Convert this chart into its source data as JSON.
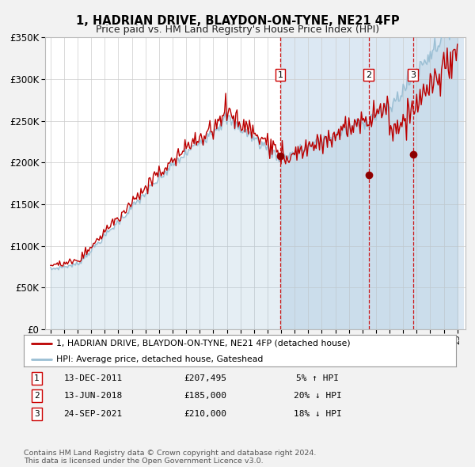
{
  "title": "1, HADRIAN DRIVE, BLAYDON-ON-TYNE, NE21 4FP",
  "subtitle": "Price paid vs. HM Land Registry's House Price Index (HPI)",
  "ylim": [
    0,
    350000
  ],
  "yticks": [
    0,
    50000,
    100000,
    150000,
    200000,
    250000,
    300000,
    350000
  ],
  "x_start_year": 1995,
  "x_end_year": 2025,
  "hpi_color": "#9bbfd4",
  "price_color": "#bb0000",
  "background_color": "#f2f2f2",
  "plot_bg_color": "#ffffff",
  "shaded_bg_color": "#dce8f3",
  "legend_label_price": "1, HADRIAN DRIVE, BLAYDON-ON-TYNE, NE21 4FP (detached house)",
  "legend_label_hpi": "HPI: Average price, detached house, Gateshead",
  "sales": [
    {
      "num": 1,
      "date": "13-DEC-2011",
      "year": 2011.95,
      "price": 207495,
      "pct": "5%",
      "dir": "↑"
    },
    {
      "num": 2,
      "date": "13-JUN-2018",
      "year": 2018.45,
      "price": 185000,
      "pct": "20%",
      "dir": "↓"
    },
    {
      "num": 3,
      "date": "24-SEP-2021",
      "year": 2021.73,
      "price": 210000,
      "pct": "18%",
      "dir": "↓"
    }
  ],
  "footer": "Contains HM Land Registry data © Crown copyright and database right 2024.\nThis data is licensed under the Open Government Licence v3.0."
}
